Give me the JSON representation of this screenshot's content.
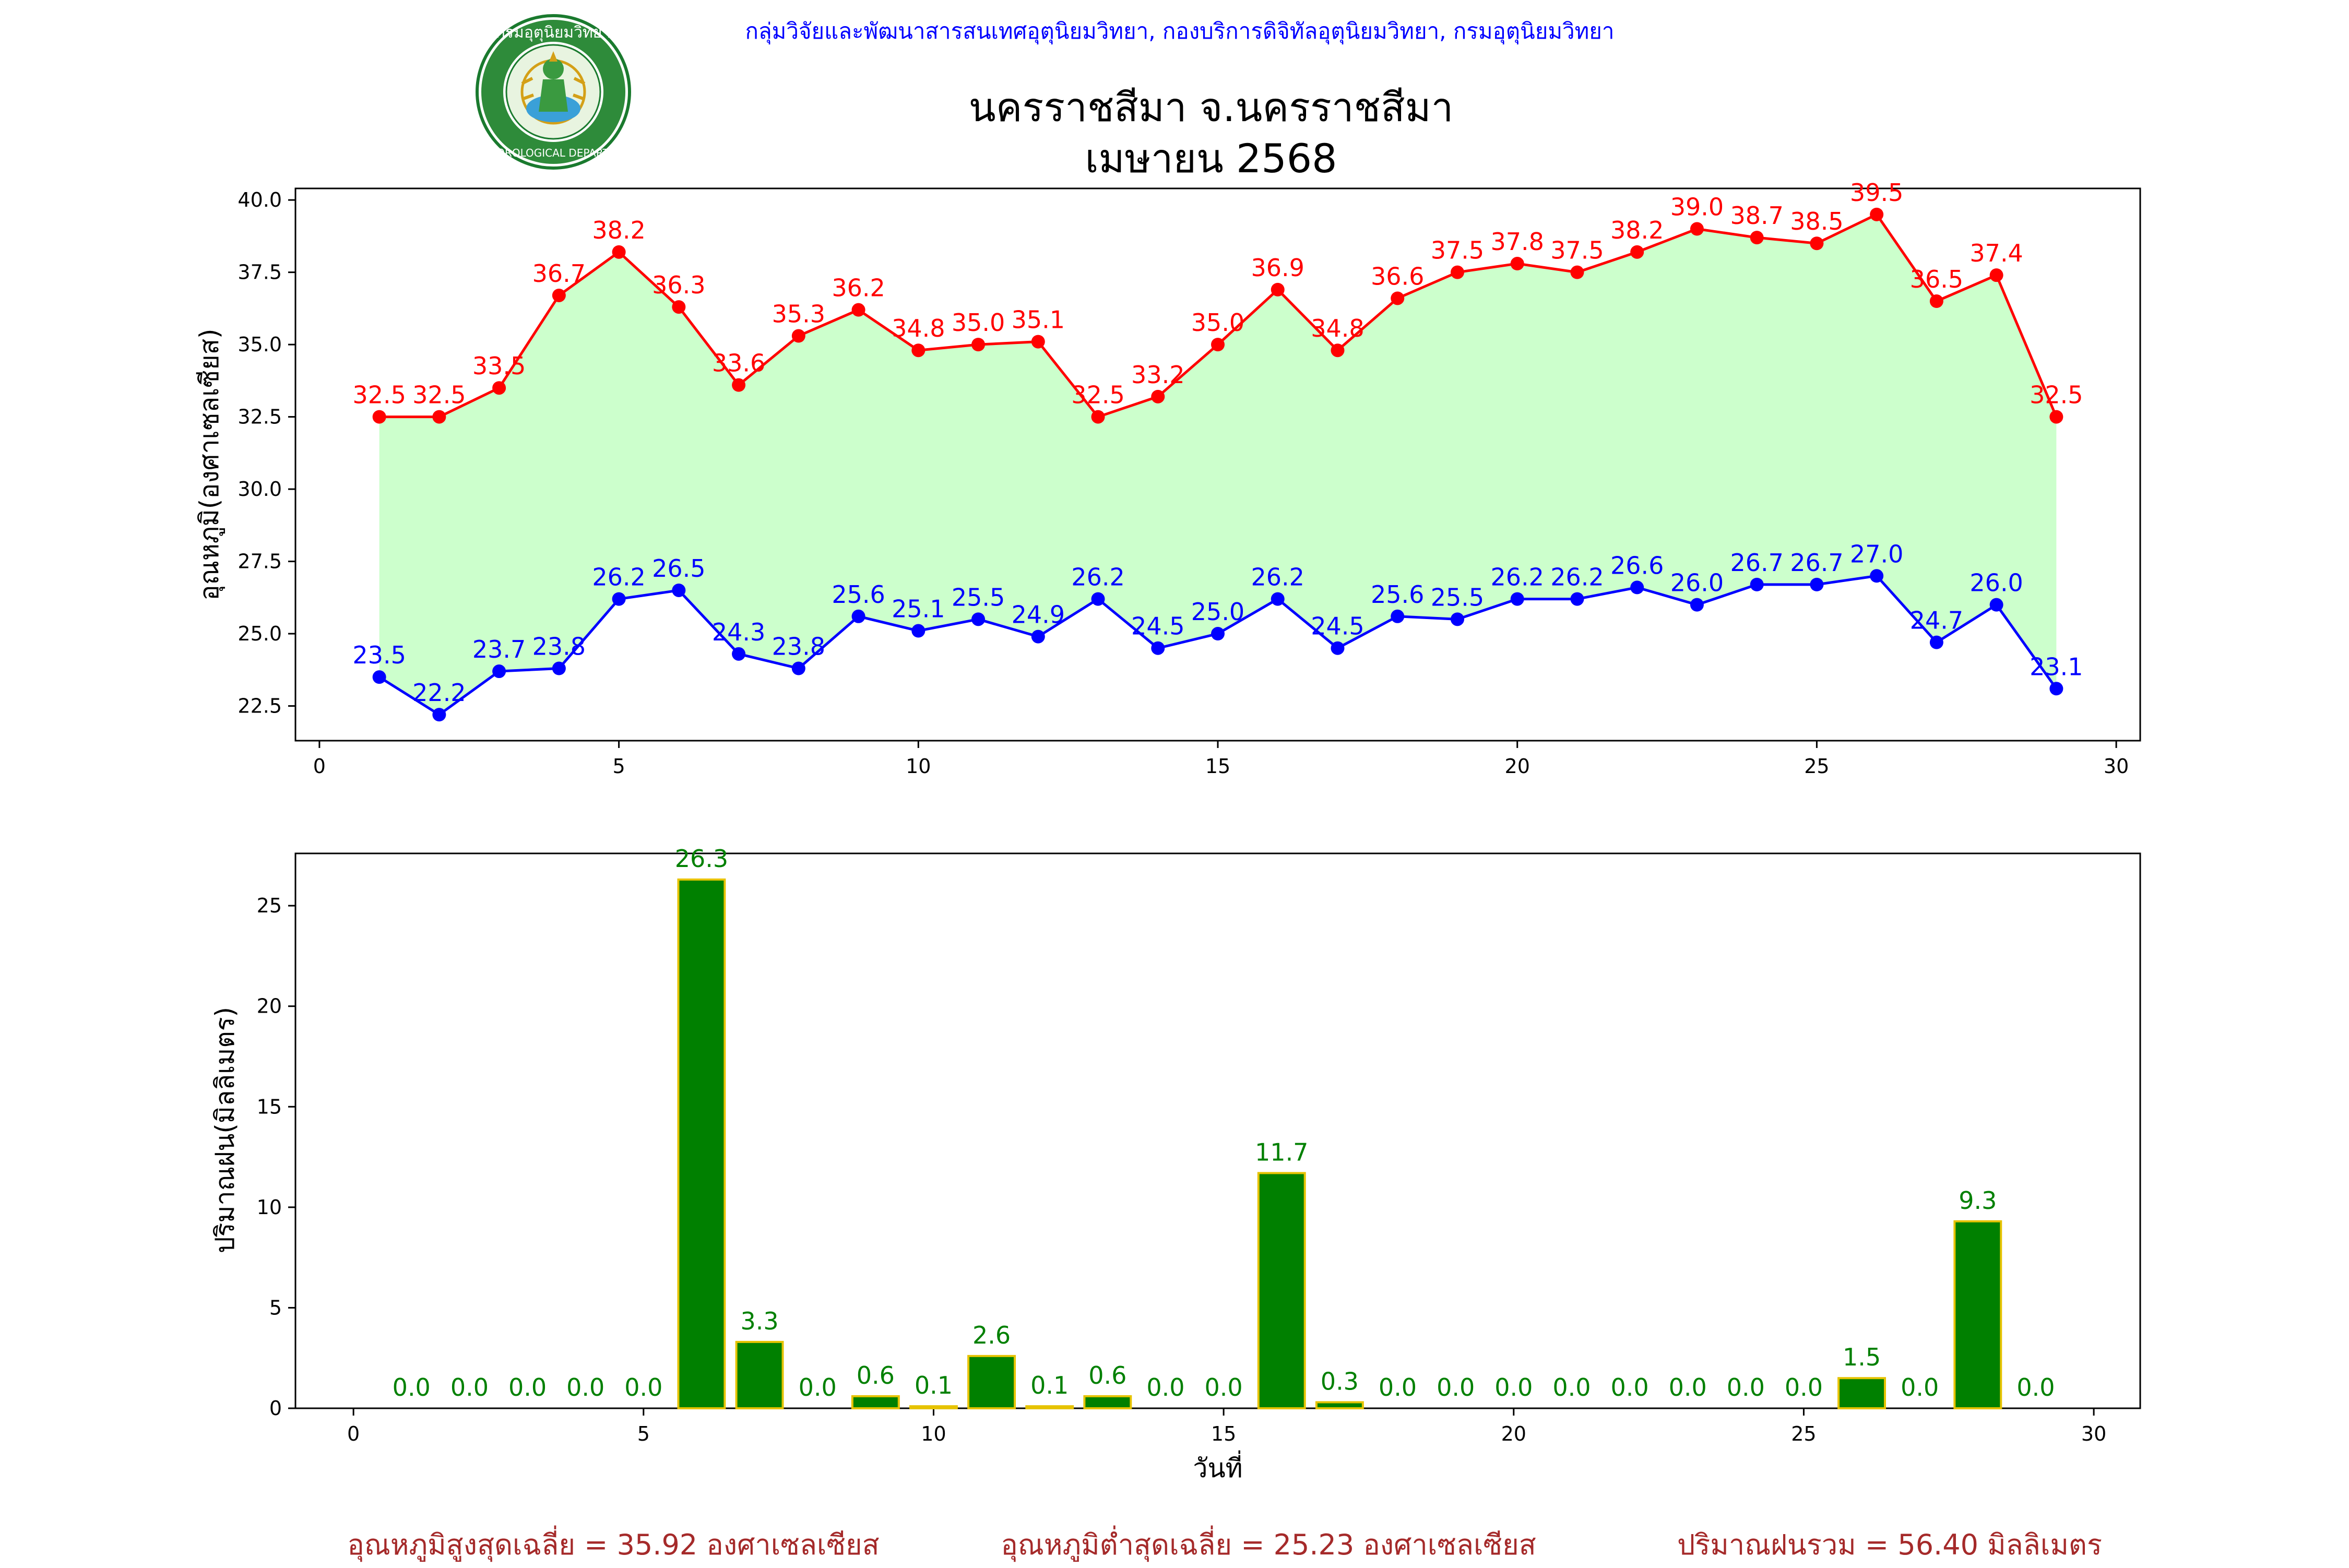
{
  "header": {
    "agency": "กลุ่มวิจัยและพัฒนาสารสนเทศอุตุนิยมวิทยา, กองบริการดิจิทัลอุตุนิยมวิทยา, กรมอุตุนิยมวิทยา",
    "title_line1": "นครราชสีมา จ.นครราชสีมา",
    "title_line2": "เมษายน 2568",
    "logo_text_top": "กรมอุตุนิยมวิทยา",
    "logo_text_bottom": "METEOROLOGICAL DEPARTMENT"
  },
  "colors": {
    "max": "#ff0000",
    "min": "#0000ff",
    "fill": "#ccffcc",
    "bar": "#008000",
    "bar_edge": "#e6c300",
    "bar_label": "#008000",
    "summary": "#a52a2a",
    "agency": "#0000ff"
  },
  "chart_data": [
    {
      "type": "line",
      "ylabel": "อุณหภูมิ(องศาเซลเซียส)",
      "xlabel": "",
      "xlim": [
        -0.4,
        30.4
      ],
      "ylim": [
        21.3,
        40.4
      ],
      "xticks": [
        0,
        5,
        10,
        15,
        20,
        25,
        30
      ],
      "yticks": [
        22.5,
        25.0,
        27.5,
        30.0,
        32.5,
        35.0,
        37.5,
        40.0
      ],
      "x": [
        1,
        2,
        3,
        4,
        5,
        6,
        7,
        8,
        9,
        10,
        11,
        12,
        13,
        14,
        15,
        16,
        17,
        18,
        19,
        20,
        21,
        22,
        23,
        24,
        25,
        26,
        27,
        28,
        29
      ],
      "series": [
        {
          "key": "max",
          "values": [
            32.5,
            32.5,
            33.5,
            36.7,
            38.2,
            36.3,
            33.6,
            35.3,
            36.2,
            34.8,
            35.0,
            35.1,
            32.5,
            33.2,
            35.0,
            36.9,
            34.8,
            36.6,
            37.5,
            37.8,
            37.5,
            38.2,
            39.0,
            38.7,
            38.5,
            39.5,
            36.5,
            37.4,
            32.5
          ]
        },
        {
          "key": "min",
          "values": [
            23.5,
            22.2,
            23.7,
            23.8,
            26.2,
            26.5,
            24.3,
            23.8,
            25.6,
            25.1,
            25.5,
            24.9,
            26.2,
            24.5,
            25.0,
            26.2,
            24.5,
            25.6,
            25.5,
            26.2,
            26.2,
            26.6,
            26.0,
            26.7,
            26.7,
            27.0,
            24.7,
            26.0,
            23.1
          ]
        }
      ],
      "grid": false
    },
    {
      "type": "bar",
      "ylabel": "ปริมาณฝน(มิลลิเมตร)",
      "xlabel": "วันที่",
      "xlim": [
        -1.0,
        30.8
      ],
      "ylim": [
        0,
        27.6
      ],
      "xticks": [
        0,
        5,
        10,
        15,
        20,
        25,
        30
      ],
      "yticks": [
        0,
        5,
        10,
        15,
        20,
        25
      ],
      "x": [
        1,
        2,
        3,
        4,
        5,
        6,
        7,
        8,
        9,
        10,
        11,
        12,
        13,
        14,
        15,
        16,
        17,
        18,
        19,
        20,
        21,
        22,
        23,
        24,
        25,
        26,
        27,
        28,
        29
      ],
      "values": [
        0.0,
        0.0,
        0.0,
        0.0,
        0.0,
        26.3,
        3.3,
        0.0,
        0.6,
        0.1,
        2.6,
        0.1,
        0.6,
        0.0,
        0.0,
        11.7,
        0.3,
        0.0,
        0.0,
        0.0,
        0.0,
        0.0,
        0.0,
        0.0,
        0.0,
        1.5,
        0.0,
        9.3,
        0.0
      ],
      "grid": false
    }
  ],
  "summary": {
    "avg_max": "อุณหภูมิสูงสุดเฉลี่ย = 35.92 องศาเซลเซียส",
    "avg_min": "อุณหภูมิต่ำสุดเฉลี่ย = 25.23 องศาเซลเซียส",
    "total_rain": "ปริมาณฝนรวม = 56.40 มิลลิเมตร"
  }
}
